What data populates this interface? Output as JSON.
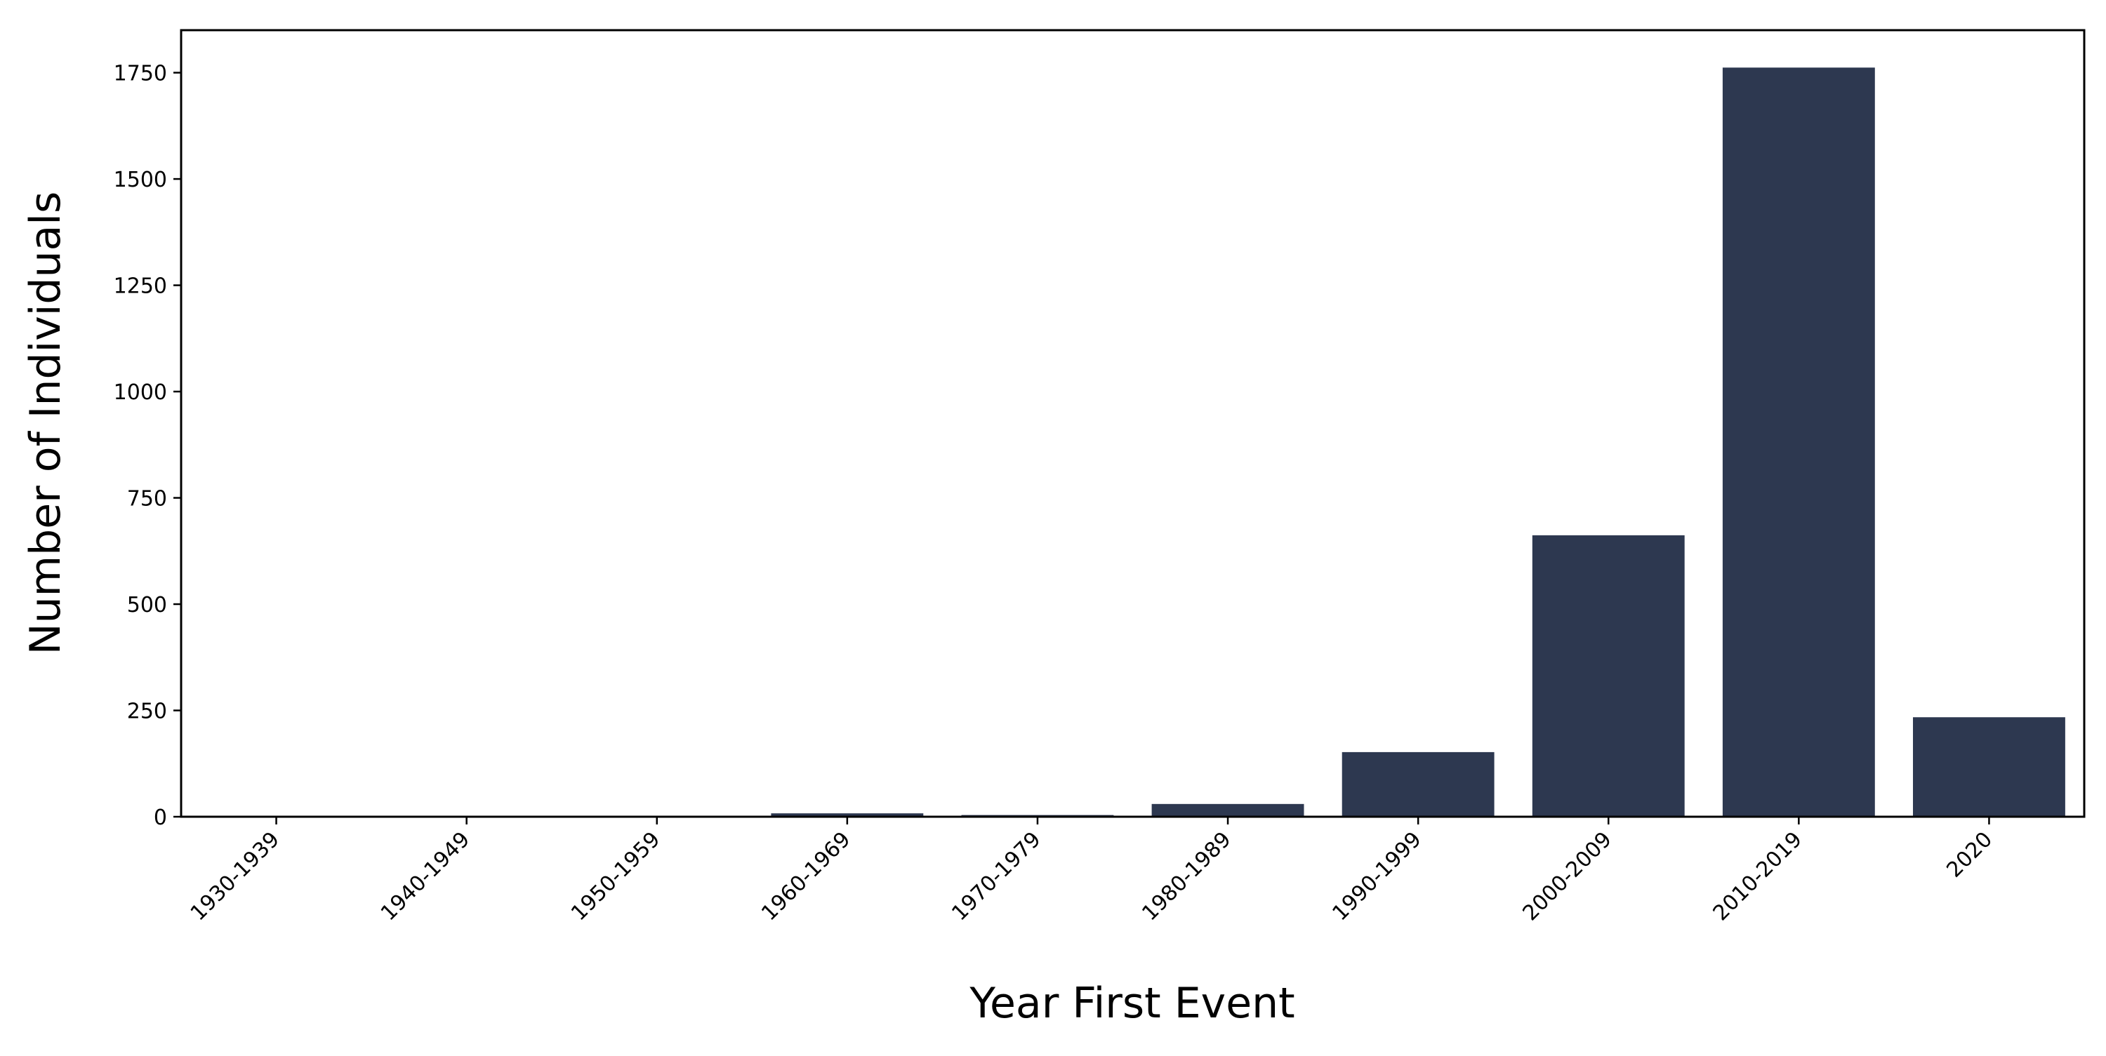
{
  "chart_data": {
    "type": "bar",
    "categories": [
      "1930-1939",
      "1940-1949",
      "1950-1959",
      "1960-1969",
      "1970-1979",
      "1980-1989",
      "1990-1999",
      "2000-2009",
      "2010-2019",
      "2020"
    ],
    "values": [
      1,
      1,
      1,
      8,
      4,
      30,
      152,
      662,
      1762,
      234
    ],
    "xlabel": "Year First Event",
    "ylabel": "Number of Individuals",
    "ylim": [
      0,
      1850
    ],
    "yticks": [
      0,
      250,
      500,
      750,
      1000,
      1250,
      1500,
      1750
    ],
    "ytick_labels": [
      "0",
      "250",
      "500",
      "750",
      "1000",
      "1250",
      "1500",
      "1750"
    ],
    "grid": false,
    "legend": "none",
    "bar_color": "#2d3850"
  }
}
